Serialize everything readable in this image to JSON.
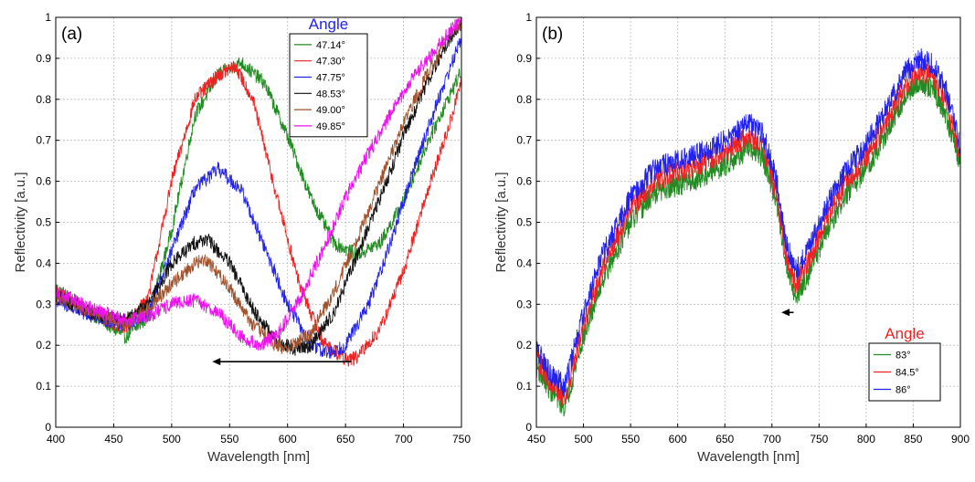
{
  "chart_data": [
    {
      "type": "line",
      "panel_label": "(a)",
      "xlabel": "Wavelength [nm]",
      "ylabel": "Reflectivity [a.u.]",
      "xlim": [
        400,
        750
      ],
      "ylim": [
        0,
        1
      ],
      "xticks": [
        400,
        450,
        500,
        550,
        600,
        650,
        700,
        750
      ],
      "yticks": [
        0,
        0.1,
        0.2,
        0.3,
        0.4,
        0.5,
        0.6,
        0.7,
        0.8,
        0.9,
        1
      ],
      "grid": true,
      "legend_title": "Angle",
      "legend_title_color": "#2222ee",
      "legend_position": "top-right",
      "noise": 0.018,
      "arrow": {
        "from": [
          655,
          0.16
        ],
        "to": [
          535,
          0.16
        ]
      },
      "series": [
        {
          "name": "47.14°",
          "color": "#228b22",
          "points": [
            [
              400,
              0.34
            ],
            [
              430,
              0.28
            ],
            [
              460,
              0.22
            ],
            [
              480,
              0.27
            ],
            [
              500,
              0.48
            ],
            [
              520,
              0.76
            ],
            [
              540,
              0.86
            ],
            [
              560,
              0.89
            ],
            [
              580,
              0.84
            ],
            [
              600,
              0.71
            ],
            [
              620,
              0.56
            ],
            [
              640,
              0.45
            ],
            [
              660,
              0.42
            ],
            [
              680,
              0.45
            ],
            [
              700,
              0.55
            ],
            [
              720,
              0.69
            ],
            [
              735,
              0.78
            ],
            [
              750,
              0.87
            ]
          ]
        },
        {
          "name": "47.30°",
          "color": "#ee2222",
          "points": [
            [
              400,
              0.33
            ],
            [
              430,
              0.28
            ],
            [
              460,
              0.24
            ],
            [
              480,
              0.32
            ],
            [
              500,
              0.6
            ],
            [
              520,
              0.8
            ],
            [
              540,
              0.86
            ],
            [
              555,
              0.88
            ],
            [
              570,
              0.8
            ],
            [
              590,
              0.57
            ],
            [
              610,
              0.35
            ],
            [
              630,
              0.21
            ],
            [
              650,
              0.165
            ],
            [
              660,
              0.17
            ],
            [
              680,
              0.24
            ],
            [
              700,
              0.38
            ],
            [
              720,
              0.57
            ],
            [
              740,
              0.74
            ],
            [
              750,
              0.85
            ]
          ]
        },
        {
          "name": "47.75°",
          "color": "#2222ee",
          "points": [
            [
              400,
              0.31
            ],
            [
              430,
              0.27
            ],
            [
              460,
              0.25
            ],
            [
              480,
              0.28
            ],
            [
              500,
              0.43
            ],
            [
              520,
              0.58
            ],
            [
              540,
              0.63
            ],
            [
              560,
              0.58
            ],
            [
              580,
              0.44
            ],
            [
              600,
              0.3
            ],
            [
              620,
              0.2
            ],
            [
              635,
              0.18
            ],
            [
              650,
              0.2
            ],
            [
              670,
              0.3
            ],
            [
              690,
              0.46
            ],
            [
              710,
              0.64
            ],
            [
              730,
              0.8
            ],
            [
              750,
              0.95
            ]
          ]
        },
        {
          "name": "48.53°",
          "color": "#111111",
          "points": [
            [
              400,
              0.32
            ],
            [
              430,
              0.28
            ],
            [
              460,
              0.26
            ],
            [
              480,
              0.3
            ],
            [
              500,
              0.4
            ],
            [
              520,
              0.45
            ],
            [
              530,
              0.46
            ],
            [
              550,
              0.4
            ],
            [
              570,
              0.29
            ],
            [
              590,
              0.21
            ],
            [
              605,
              0.19
            ],
            [
              620,
              0.2
            ],
            [
              640,
              0.28
            ],
            [
              660,
              0.42
            ],
            [
              680,
              0.56
            ],
            [
              700,
              0.71
            ],
            [
              720,
              0.84
            ],
            [
              740,
              0.95
            ],
            [
              750,
              0.98
            ]
          ]
        },
        {
          "name": "49.00°",
          "color": "#a0522d",
          "points": [
            [
              400,
              0.32
            ],
            [
              430,
              0.28
            ],
            [
              460,
              0.25
            ],
            [
              480,
              0.29
            ],
            [
              500,
              0.35
            ],
            [
              520,
              0.4
            ],
            [
              530,
              0.41
            ],
            [
              550,
              0.34
            ],
            [
              570,
              0.25
            ],
            [
              590,
              0.2
            ],
            [
              600,
              0.19
            ],
            [
              620,
              0.23
            ],
            [
              640,
              0.33
            ],
            [
              660,
              0.46
            ],
            [
              680,
              0.6
            ],
            [
              700,
              0.74
            ],
            [
              720,
              0.86
            ],
            [
              740,
              0.96
            ],
            [
              750,
              0.99
            ]
          ]
        },
        {
          "name": "49.85°",
          "color": "#ee11ee",
          "points": [
            [
              400,
              0.33
            ],
            [
              430,
              0.29
            ],
            [
              460,
              0.26
            ],
            [
              480,
              0.27
            ],
            [
              500,
              0.3
            ],
            [
              520,
              0.31
            ],
            [
              540,
              0.28
            ],
            [
              560,
              0.22
            ],
            [
              575,
              0.2
            ],
            [
              590,
              0.22
            ],
            [
              610,
              0.31
            ],
            [
              630,
              0.43
            ],
            [
              650,
              0.56
            ],
            [
              670,
              0.67
            ],
            [
              690,
              0.77
            ],
            [
              710,
              0.86
            ],
            [
              730,
              0.93
            ],
            [
              750,
              1.0
            ]
          ]
        }
      ]
    },
    {
      "type": "line",
      "panel_label": "(b)",
      "xlabel": "Wavelength [nm]",
      "ylabel": "Reflectivity [a.u.]",
      "xlim": [
        450,
        900
      ],
      "ylim": [
        0,
        1
      ],
      "xticks": [
        450,
        500,
        550,
        600,
        650,
        700,
        750,
        800,
        850,
        900
      ],
      "yticks": [
        0,
        0.1,
        0.2,
        0.3,
        0.4,
        0.5,
        0.6,
        0.7,
        0.8,
        0.9,
        1
      ],
      "grid": true,
      "legend_title": "Angle",
      "legend_title_color": "#ee2222",
      "legend_position": "bottom-right",
      "noise": 0.028,
      "arrow": {
        "from": [
          723,
          0.28
        ],
        "to": [
          710,
          0.28
        ]
      },
      "series": [
        {
          "name": "83°",
          "color": "#228b22",
          "points": [
            [
              450,
              0.15
            ],
            [
              465,
              0.09
            ],
            [
              480,
              0.05
            ],
            [
              500,
              0.22
            ],
            [
              520,
              0.36
            ],
            [
              550,
              0.5
            ],
            [
              575,
              0.57
            ],
            [
              600,
              0.59
            ],
            [
              625,
              0.61
            ],
            [
              650,
              0.64
            ],
            [
              675,
              0.68
            ],
            [
              690,
              0.66
            ],
            [
              705,
              0.55
            ],
            [
              715,
              0.4
            ],
            [
              725,
              0.32
            ],
            [
              740,
              0.38
            ],
            [
              760,
              0.49
            ],
            [
              780,
              0.57
            ],
            [
              800,
              0.63
            ],
            [
              820,
              0.71
            ],
            [
              840,
              0.8
            ],
            [
              855,
              0.84
            ],
            [
              870,
              0.83
            ],
            [
              885,
              0.76
            ],
            [
              900,
              0.64
            ]
          ]
        },
        {
          "name": "84.5°",
          "color": "#ee2222",
          "points": [
            [
              450,
              0.17
            ],
            [
              465,
              0.11
            ],
            [
              480,
              0.07
            ],
            [
              500,
              0.25
            ],
            [
              520,
              0.39
            ],
            [
              550,
              0.53
            ],
            [
              575,
              0.6
            ],
            [
              600,
              0.62
            ],
            [
              625,
              0.64
            ],
            [
              650,
              0.67
            ],
            [
              675,
              0.71
            ],
            [
              690,
              0.69
            ],
            [
              705,
              0.57
            ],
            [
              715,
              0.42
            ],
            [
              725,
              0.35
            ],
            [
              740,
              0.41
            ],
            [
              760,
              0.52
            ],
            [
              780,
              0.6
            ],
            [
              800,
              0.66
            ],
            [
              820,
              0.74
            ],
            [
              840,
              0.83
            ],
            [
              855,
              0.87
            ],
            [
              870,
              0.86
            ],
            [
              885,
              0.79
            ],
            [
              900,
              0.66
            ]
          ]
        },
        {
          "name": "86°",
          "color": "#2222ee",
          "points": [
            [
              450,
              0.19
            ],
            [
              465,
              0.13
            ],
            [
              480,
              0.1
            ],
            [
              500,
              0.28
            ],
            [
              520,
              0.42
            ],
            [
              550,
              0.56
            ],
            [
              575,
              0.63
            ],
            [
              600,
              0.65
            ],
            [
              625,
              0.67
            ],
            [
              650,
              0.7
            ],
            [
              675,
              0.74
            ],
            [
              690,
              0.72
            ],
            [
              705,
              0.6
            ],
            [
              715,
              0.45
            ],
            [
              725,
              0.38
            ],
            [
              740,
              0.44
            ],
            [
              760,
              0.55
            ],
            [
              780,
              0.63
            ],
            [
              800,
              0.69
            ],
            [
              820,
              0.77
            ],
            [
              840,
              0.86
            ],
            [
              855,
              0.9
            ],
            [
              870,
              0.89
            ],
            [
              885,
              0.82
            ],
            [
              900,
              0.68
            ]
          ]
        }
      ]
    }
  ]
}
